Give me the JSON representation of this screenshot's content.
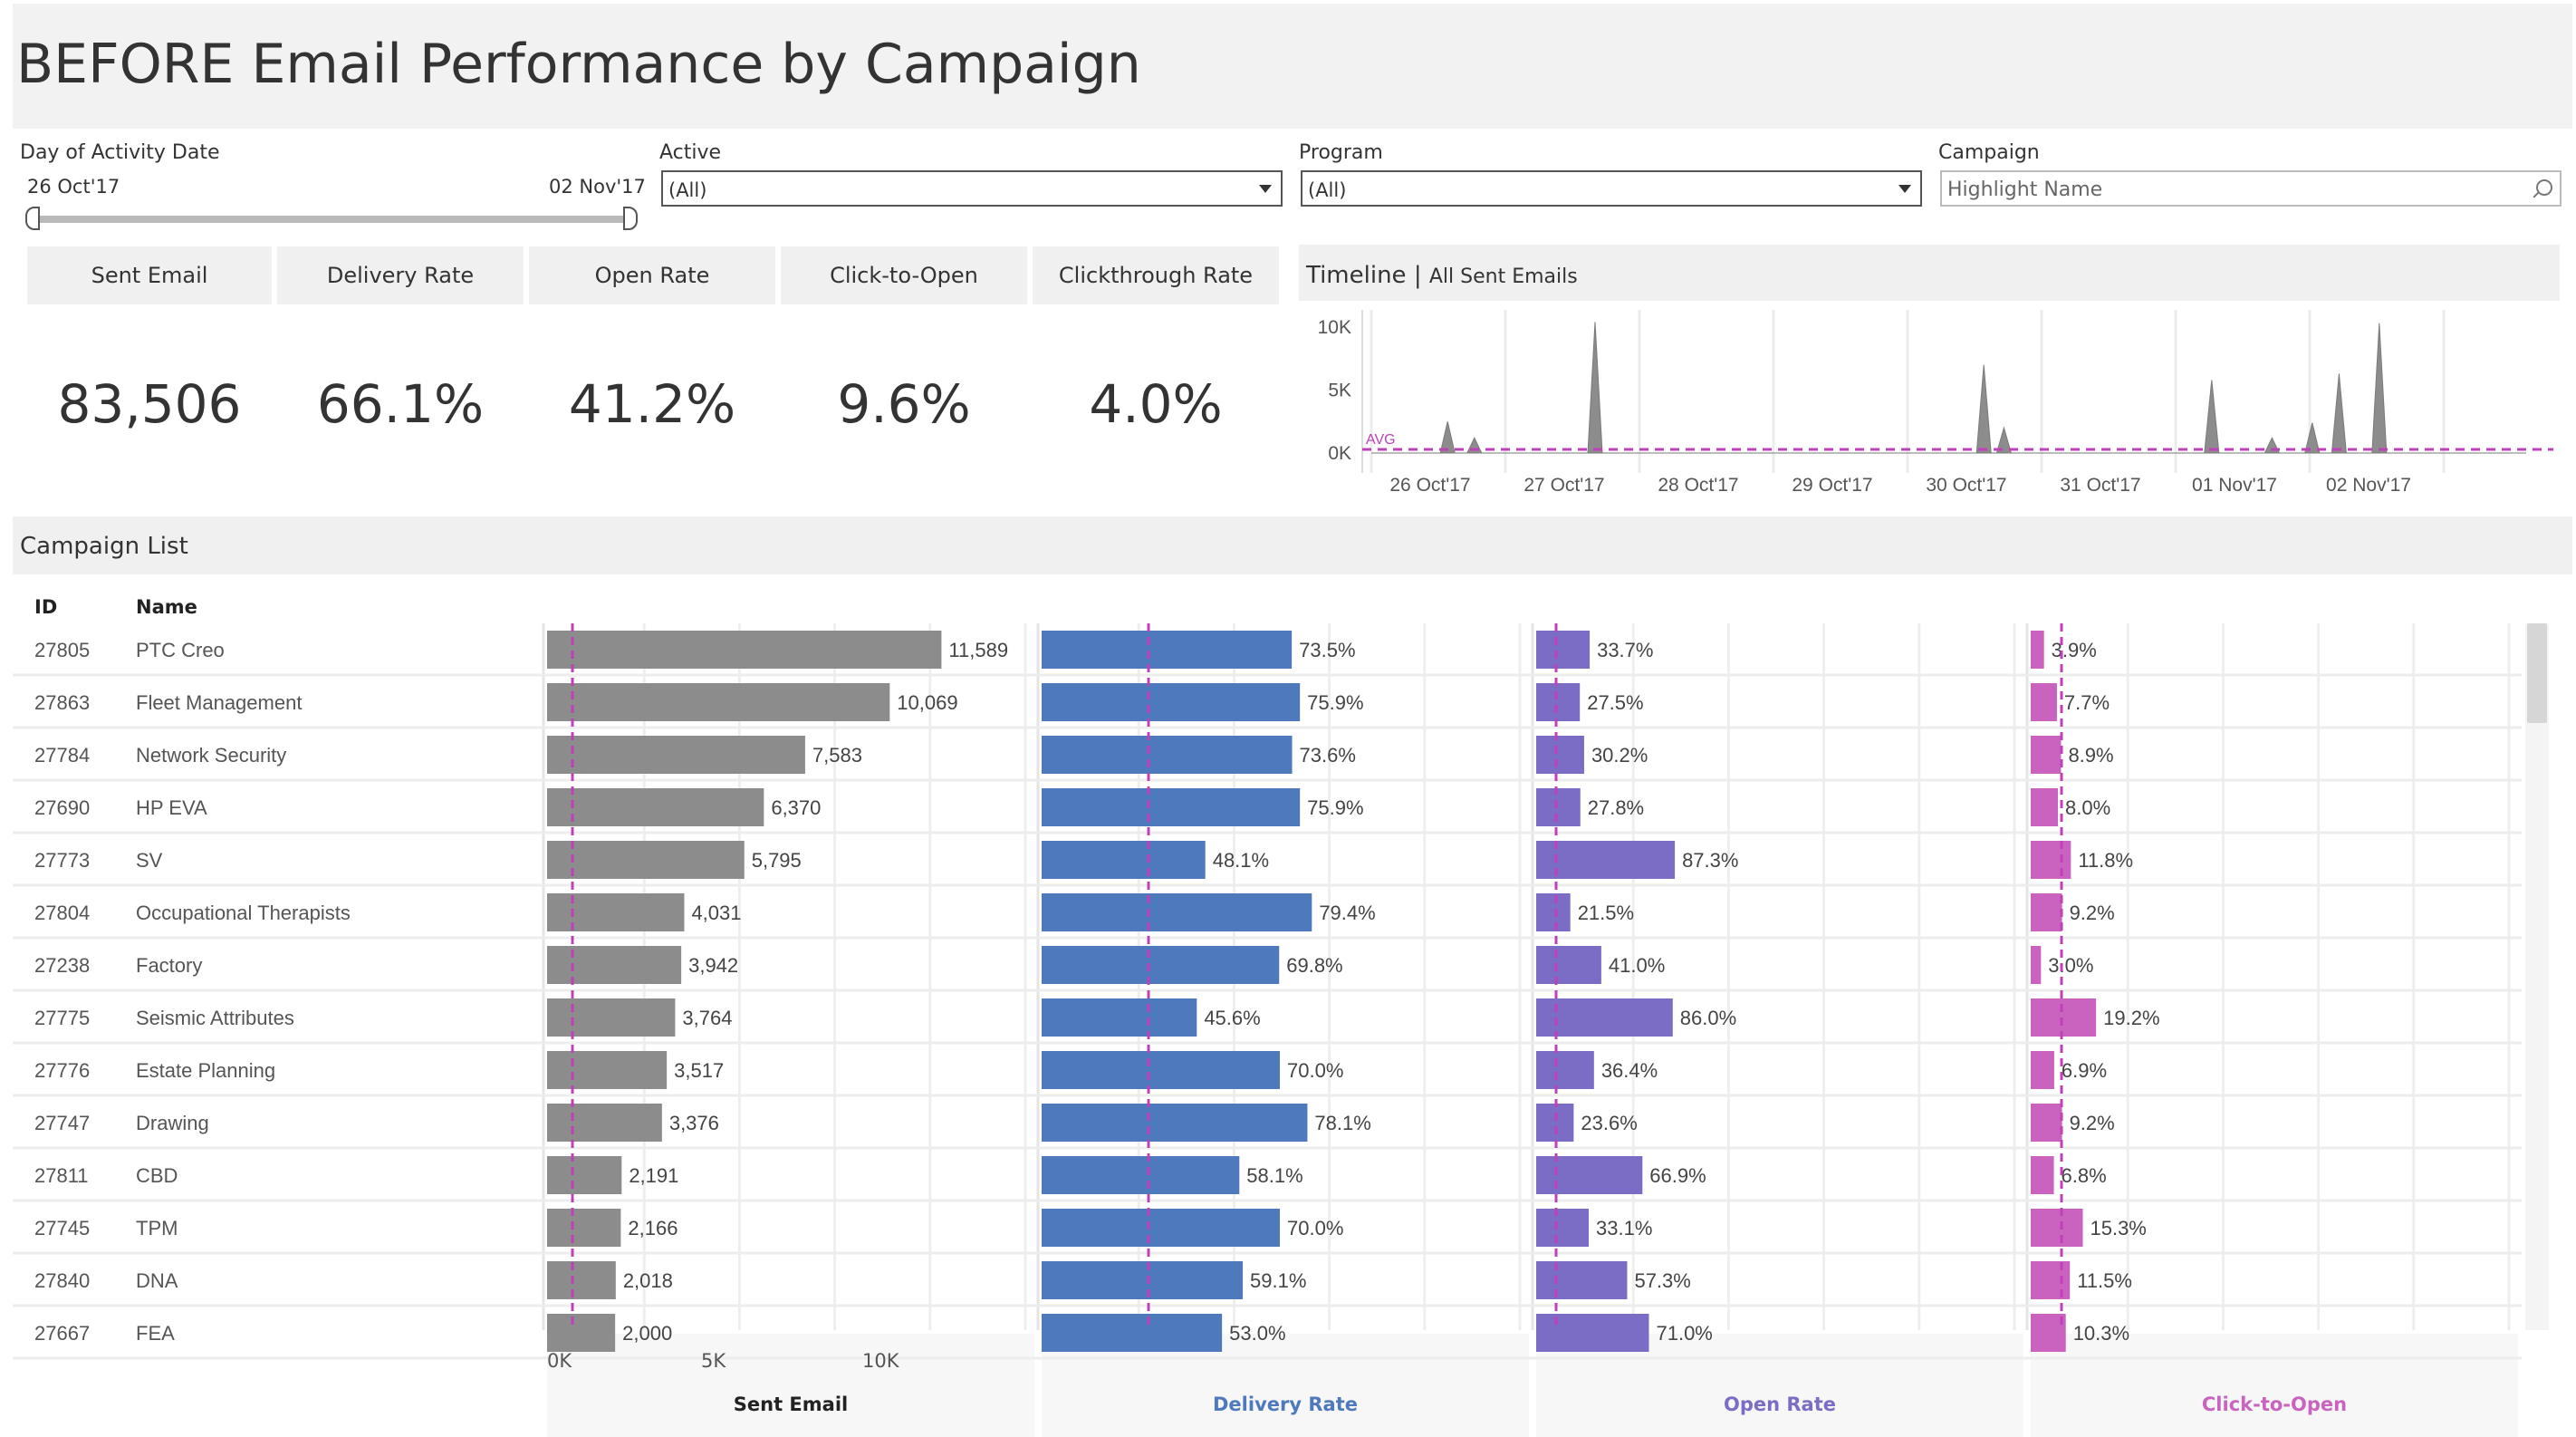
{
  "title": "BEFORE Email Performance by Campaign",
  "filters": {
    "date": {
      "label": "Day of Activity Date",
      "start": "26 Oct'17",
      "end": "02 Nov'17"
    },
    "active": {
      "label": "Active",
      "value": "(All)"
    },
    "program": {
      "label": "Program",
      "value": "(All)"
    },
    "campaign": {
      "label": "Campaign",
      "placeholder": "Highlight Name"
    }
  },
  "kpis": [
    {
      "label": "Sent Email",
      "value": "83,506"
    },
    {
      "label": "Delivery Rate",
      "value": "66.1%"
    },
    {
      "label": "Open Rate",
      "value": "41.2%"
    },
    {
      "label": "Click-to-Open",
      "value": "9.6%"
    },
    {
      "label": "Clickthrough Rate",
      "value": "4.0%"
    }
  ],
  "timeline": {
    "title": "Timeline",
    "subtitle": "All Sent Emails",
    "avg_label": "AVG",
    "y_ticks": [
      "10K",
      "5K",
      "0K"
    ],
    "x_ticks": [
      "26 Oct'17",
      "27 Oct'17",
      "28 Oct'17",
      "29 Oct'17",
      "30 Oct'17",
      "31 Oct'17",
      "01 Nov'17",
      "02 Nov'17"
    ]
  },
  "campaign_list": {
    "title": "Campaign List",
    "col_id": "ID",
    "col_name": "Name",
    "sent_axis_ticks": [
      "0K",
      "5K",
      "10K"
    ],
    "measures": [
      "Sent Email",
      "Delivery Rate",
      "Open Rate",
      "Click-to-Open"
    ]
  },
  "colors": {
    "sent": "#8c8c8c",
    "delivery": "#4e79bd",
    "open": "#7b6dc6",
    "cto": "#c963bf",
    "avg_line": "#c040b8"
  },
  "chart_data": [
    {
      "type": "bar",
      "title": "Sent Email",
      "categories": [
        "27805",
        "27863",
        "27784",
        "27690",
        "27773",
        "27804",
        "27238",
        "27775",
        "27776",
        "27747",
        "27811",
        "27745",
        "27840",
        "27667"
      ],
      "names": [
        "PTC Creo",
        "Fleet Management",
        "Network Security",
        "HP EVA",
        "SV",
        "Occupational Therapists",
        "Factory",
        "Seismic Attributes",
        "Estate Planning",
        "Drawing",
        "CBD",
        "TPM",
        "DNA",
        "FEA"
      ],
      "values": [
        11589,
        10069,
        7583,
        6370,
        5795,
        4031,
        3942,
        3764,
        3517,
        3376,
        2191,
        2166,
        2018,
        2000
      ],
      "labels": [
        "11,589",
        "10,069",
        "7,583",
        "6,370",
        "5,795",
        "4,031",
        "3,942",
        "3,764",
        "3,517",
        "3,376",
        "2,191",
        "2,166",
        "2,018",
        "2,000"
      ],
      "xlim": [
        0,
        14000
      ]
    },
    {
      "type": "bar",
      "title": "Delivery Rate",
      "values": [
        73.5,
        75.9,
        73.6,
        75.9,
        48.1,
        79.4,
        69.8,
        45.6,
        70.0,
        78.1,
        58.1,
        70.0,
        59.1,
        53.0
      ],
      "labels": [
        "73.5%",
        "75.9%",
        "73.6%",
        "75.9%",
        "48.1%",
        "79.4%",
        "69.8%",
        "45.6%",
        "70.0%",
        "78.1%",
        "58.1%",
        "70.0%",
        "59.1%",
        "53.0%"
      ]
    },
    {
      "type": "bar",
      "title": "Open Rate",
      "values": [
        33.7,
        27.5,
        30.2,
        27.8,
        87.3,
        21.5,
        41.0,
        86.0,
        36.4,
        23.6,
        66.9,
        33.1,
        57.3,
        71.0
      ],
      "labels": [
        "33.7%",
        "27.5%",
        "30.2%",
        "27.8%",
        "87.3%",
        "21.5%",
        "41.0%",
        "86.0%",
        "36.4%",
        "23.6%",
        "66.9%",
        "33.1%",
        "57.3%",
        "71.0%"
      ]
    },
    {
      "type": "bar",
      "title": "Click-to-Open",
      "values": [
        3.9,
        7.7,
        8.9,
        8.0,
        11.8,
        9.2,
        3.0,
        19.2,
        6.9,
        9.2,
        6.8,
        15.3,
        11.5,
        10.3
      ],
      "labels": [
        "3.9%",
        "7.7%",
        "8.9%",
        "8.0%",
        "11.8%",
        "9.2%",
        "3.0%",
        "19.2%",
        "6.9%",
        "9.2%",
        "6.8%",
        "15.3%",
        "11.5%",
        "10.3%"
      ]
    },
    {
      "type": "area",
      "title": "Timeline",
      "x": [
        "26 Oct'17",
        "27 Oct'17",
        "28 Oct'17",
        "29 Oct'17",
        "30 Oct'17",
        "31 Oct'17",
        "01 Nov'17",
        "02 Nov'17"
      ],
      "peaks": [
        {
          "x": 0.4,
          "y": 2500
        },
        {
          "x": 0.6,
          "y": 1200
        },
        {
          "x": 1.5,
          "y": 10400
        },
        {
          "x": 4.4,
          "y": 7000
        },
        {
          "x": 4.55,
          "y": 2000
        },
        {
          "x": 6.1,
          "y": 5800
        },
        {
          "x": 6.55,
          "y": 1200
        },
        {
          "x": 6.85,
          "y": 2400
        },
        {
          "x": 7.05,
          "y": 6300
        },
        {
          "x": 7.35,
          "y": 10300
        }
      ],
      "ylim": [
        0,
        10500
      ]
    }
  ]
}
